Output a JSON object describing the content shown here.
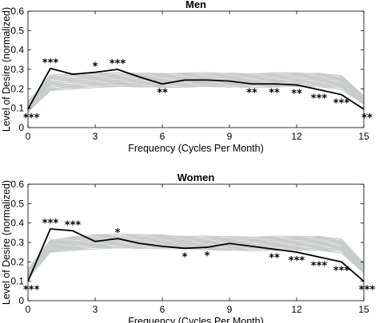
{
  "chart_data": [
    {
      "type": "line",
      "title": "Men",
      "xlabel": "Frequency (Cycles Per Month)",
      "ylabel": "Level of Desire (normalized)",
      "xlim": [
        0,
        15
      ],
      "ylim": [
        0,
        0.6
      ],
      "xticks": [
        "0",
        "3",
        "6",
        "9",
        "12",
        "15"
      ],
      "yticks": [
        "0",
        "0.1",
        "0.2",
        "0.3",
        "0.4",
        "0.5",
        "0.6"
      ],
      "grid": false,
      "x": [
        0,
        1,
        2,
        3,
        4,
        5,
        6,
        7,
        8,
        9,
        10,
        11,
        12,
        13,
        14,
        15
      ],
      "series": [
        {
          "values": [
            0.095,
            0.305,
            0.275,
            0.285,
            0.3,
            0.26,
            0.225,
            0.245,
            0.245,
            0.24,
            0.225,
            0.225,
            0.22,
            0.195,
            0.17,
            0.095
          ],
          "color": "#000000"
        }
      ],
      "null_band": {
        "color": "#c8ccca",
        "low": [
          0.08,
          0.19,
          0.2,
          0.21,
          0.21,
          0.21,
          0.21,
          0.21,
          0.21,
          0.21,
          0.21,
          0.21,
          0.21,
          0.21,
          0.2,
          0.12
        ],
        "high": [
          0.13,
          0.27,
          0.28,
          0.28,
          0.28,
          0.28,
          0.28,
          0.28,
          0.28,
          0.28,
          0.28,
          0.28,
          0.28,
          0.28,
          0.27,
          0.16
        ]
      },
      "annotations": [
        {
          "x": 0,
          "label": "***",
          "pos": "below"
        },
        {
          "x": 1,
          "label": "***",
          "pos": "above"
        },
        {
          "x": 3,
          "label": "*",
          "pos": "above"
        },
        {
          "x": 4,
          "label": "***",
          "pos": "above"
        },
        {
          "x": 6,
          "label": "**",
          "pos": "below"
        },
        {
          "x": 10,
          "label": "**",
          "pos": "below"
        },
        {
          "x": 11,
          "label": "**",
          "pos": "below"
        },
        {
          "x": 12,
          "label": "**",
          "pos": "below"
        },
        {
          "x": 13,
          "label": "***",
          "pos": "below"
        },
        {
          "x": 14,
          "label": "***",
          "pos": "below"
        },
        {
          "x": 15,
          "label": "**",
          "pos": "below"
        }
      ]
    },
    {
      "type": "line",
      "title": "Women",
      "xlabel": "Frequency (Cycles Per Month)",
      "ylabel": "Level of Desire (normalized)",
      "xlim": [
        0,
        15
      ],
      "ylim": [
        0,
        0.6
      ],
      "xticks": [
        "0",
        "3",
        "6",
        "9",
        "12",
        "15"
      ],
      "yticks": [
        "0",
        "0.1",
        "0.2",
        "0.3",
        "0.4",
        "0.5",
        "0.6"
      ],
      "grid": false,
      "x": [
        0,
        1,
        2,
        3,
        4,
        5,
        6,
        7,
        8,
        9,
        10,
        11,
        12,
        13,
        14,
        15
      ],
      "series": [
        {
          "values": [
            0.1,
            0.37,
            0.36,
            0.305,
            0.32,
            0.295,
            0.28,
            0.27,
            0.275,
            0.295,
            0.28,
            0.265,
            0.25,
            0.225,
            0.2,
            0.1
          ],
          "color": "#000000"
        }
      ],
      "null_band": {
        "color": "#c8ccca",
        "low": [
          0.11,
          0.25,
          0.26,
          0.27,
          0.27,
          0.27,
          0.27,
          0.27,
          0.26,
          0.26,
          0.26,
          0.26,
          0.26,
          0.26,
          0.25,
          0.14
        ],
        "high": [
          0.16,
          0.31,
          0.33,
          0.34,
          0.34,
          0.34,
          0.34,
          0.33,
          0.33,
          0.33,
          0.33,
          0.33,
          0.33,
          0.33,
          0.32,
          0.19
        ]
      },
      "annotations": [
        {
          "x": 0,
          "label": "***",
          "pos": "below"
        },
        {
          "x": 1,
          "label": "***",
          "pos": "above"
        },
        {
          "x": 2,
          "label": "***",
          "pos": "above"
        },
        {
          "x": 4,
          "label": "*",
          "pos": "above"
        },
        {
          "x": 7,
          "label": "*",
          "pos": "below"
        },
        {
          "x": 8,
          "label": "*",
          "pos": "below"
        },
        {
          "x": 11,
          "label": "**",
          "pos": "below"
        },
        {
          "x": 12,
          "label": "***",
          "pos": "below"
        },
        {
          "x": 13,
          "label": "***",
          "pos": "below"
        },
        {
          "x": 14,
          "label": "***",
          "pos": "below"
        },
        {
          "x": 15,
          "label": "***",
          "pos": "below"
        }
      ]
    }
  ]
}
